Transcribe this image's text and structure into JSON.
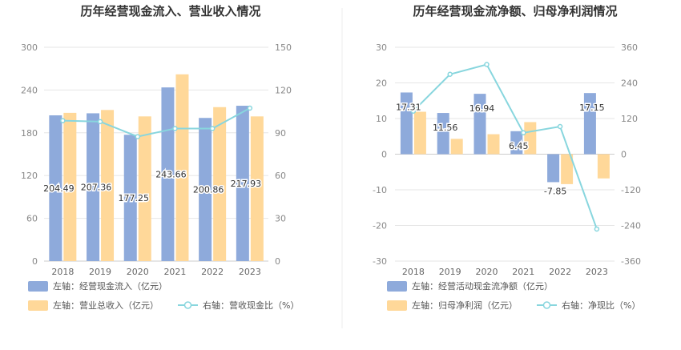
{
  "chart_data": [
    {
      "type": "bar",
      "title": "历年经营现金流入、营业收入情况",
      "categories": [
        "2018",
        "2019",
        "2020",
        "2021",
        "2022",
        "2023"
      ],
      "left_axis": {
        "min": 0,
        "max": 300,
        "ticks": [
          "0",
          "60",
          "120",
          "180",
          "240",
          "300"
        ]
      },
      "right_axis": {
        "min": 0,
        "max": 150,
        "ticks": [
          "0",
          "30",
          "60",
          "90",
          "120",
          "150"
        ]
      },
      "series": [
        {
          "name": "经营现金流入",
          "legend": "左轴：经营现金流入（亿元）",
          "axis": "left",
          "kind": "bar",
          "color": "#8eaadb",
          "values": [
            204.49,
            207.36,
            177.25,
            243.66,
            200.86,
            217.93
          ],
          "labels": [
            "204.49",
            "207.36",
            "177.25",
            "243.66",
            "200.86",
            "217.93"
          ]
        },
        {
          "name": "营业总收入",
          "legend": "左轴：营业总收入（亿元）",
          "axis": "left",
          "kind": "bar",
          "color": "#ffd899",
          "values": [
            208,
            212,
            203,
            262,
            216,
            203
          ]
        },
        {
          "name": "营收现金比",
          "legend": "右轴：营收现金比（%）",
          "axis": "right",
          "kind": "line",
          "color": "#88d6de",
          "values": [
            98.5,
            97.8,
            87.3,
            93.0,
            93.0,
            107.3
          ]
        }
      ]
    },
    {
      "type": "bar",
      "title": "历年经营现金流净额、归母净利润情况",
      "categories": [
        "2018",
        "2019",
        "2020",
        "2021",
        "2022",
        "2023"
      ],
      "left_axis": {
        "min": -30,
        "max": 30,
        "ticks": [
          "-30",
          "-20",
          "-10",
          "0",
          "10",
          "20",
          "30"
        ]
      },
      "right_axis": {
        "min": -360,
        "max": 360,
        "ticks": [
          "-360",
          "-240",
          "-120",
          "0",
          "120",
          "240",
          "360"
        ]
      },
      "series": [
        {
          "name": "经营活动现金流净额",
          "legend": "左轴：经营活动现金流净额（亿元）",
          "axis": "left",
          "kind": "bar",
          "color": "#8eaadb",
          "values": [
            17.31,
            11.56,
            16.94,
            6.45,
            -7.85,
            17.15
          ],
          "labels": [
            "17.31",
            "11.56",
            "16.94",
            "6.45",
            "-7.85",
            "17.15"
          ]
        },
        {
          "name": "归母净利润",
          "legend": "左轴：归母净利润（亿元）",
          "axis": "left",
          "kind": "bar",
          "color": "#ffd899",
          "values": [
            11.9,
            4.3,
            5.6,
            9.0,
            -8.4,
            -6.8
          ]
        },
        {
          "name": "净现比",
          "legend": "右轴：净现比（%）",
          "axis": "right",
          "kind": "line",
          "color": "#88d6de",
          "values": [
            145,
            269,
            302,
            72,
            93,
            -252
          ]
        }
      ]
    }
  ]
}
